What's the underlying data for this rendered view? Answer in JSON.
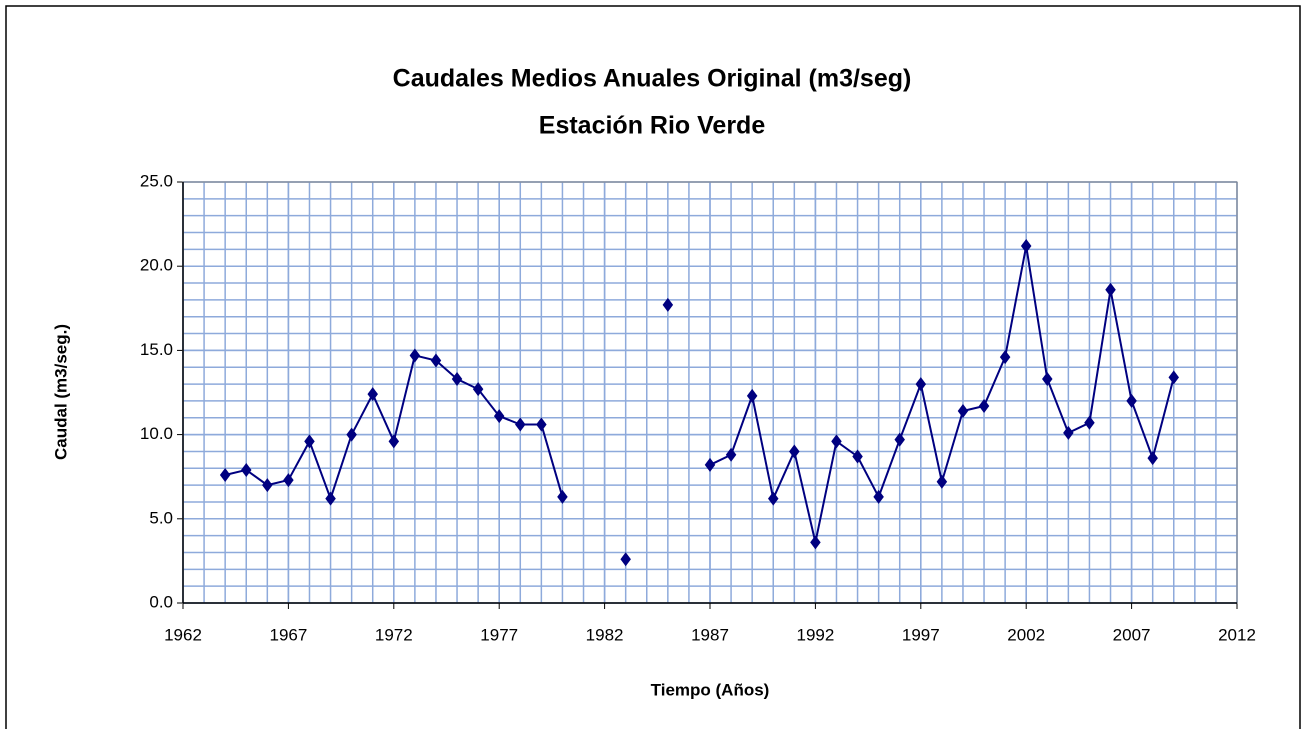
{
  "chart_data": {
    "type": "line",
    "title": "Caudales Medios Anuales Original (m3/seg)",
    "subtitle": "Estación Rio Verde",
    "x_label": "Tiempo (Años)",
    "y_label": "Caudal (m3/seg.)",
    "x": [
      1964,
      1965,
      1966,
      1967,
      1968,
      1969,
      1970,
      1971,
      1972,
      1973,
      1974,
      1975,
      1976,
      1977,
      1978,
      1979,
      1980,
      1981,
      1982,
      1983,
      1984,
      1985,
      1986,
      1987,
      1988,
      1989,
      1990,
      1991,
      1992,
      1993,
      1994,
      1995,
      1996,
      1997,
      1998,
      1999,
      2000,
      2001,
      2002,
      2003,
      2004,
      2005,
      2006,
      2007,
      2008,
      2009
    ],
    "series": [
      {
        "color": "#000080",
        "values": [
          7.6,
          7.9,
          7.0,
          7.3,
          9.6,
          6.2,
          10.0,
          12.4,
          9.6,
          14.7,
          14.4,
          13.3,
          12.7,
          11.1,
          10.6,
          10.6,
          6.3,
          null,
          null,
          2.6,
          null,
          17.7,
          null,
          8.2,
          8.8,
          12.3,
          6.2,
          9.0,
          3.6,
          9.6,
          8.7,
          6.3,
          9.7,
          13.0,
          7.2,
          11.4,
          11.7,
          14.6,
          21.2,
          13.3,
          10.1,
          10.7,
          18.6,
          12.0,
          8.6,
          13.4
        ]
      }
    ],
    "xlim": [
      1962,
      2012
    ],
    "xticks": [
      1962,
      1967,
      1972,
      1977,
      1982,
      1987,
      1992,
      1997,
      2002,
      2007,
      2012
    ],
    "ylim": [
      0,
      25
    ],
    "yticks": [
      {
        "value": 0,
        "label": "0.0"
      },
      {
        "value": 5,
        "label": "5.0"
      },
      {
        "value": 10,
        "label": "10.0"
      },
      {
        "value": 15,
        "label": "15.0"
      },
      {
        "value": 20,
        "label": "20.0"
      },
      {
        "value": 25,
        "label": "25.0"
      }
    ],
    "grid": true,
    "minor_grid_step": {
      "x": 1,
      "y": 1
    },
    "grid_color": "#8eaadb"
  }
}
